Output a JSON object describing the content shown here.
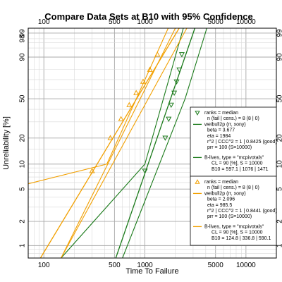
{
  "chart_data": {
    "type": "scatter",
    "title": "Compare Data Sets at B10 with 95% Confidence",
    "xlabel": "Time To Failure",
    "ylabel": "Unreliability [%]",
    "x_scale": "log",
    "y_scale": "weibull",
    "xlim": [
      70,
      20000
    ],
    "ylim_percent": [
      0.7,
      99.5
    ],
    "grid": true,
    "x_ticks_top": [
      "100",
      "500",
      "1000",
      "5000",
      "10000"
    ],
    "x_ticks_bottom": [
      "100",
      "500",
      "1000",
      "5000",
      "10000"
    ],
    "y_ticks": [
      "1",
      "2",
      "5",
      "10",
      "20",
      "50",
      "90",
      "99"
    ],
    "y_ticks_right": [
      "1",
      "2",
      "5",
      "10",
      "20",
      "50",
      "90",
      "99"
    ],
    "y_ticks_left_extra": [
      "98"
    ],
    "series": [
      {
        "color": "#1a7a1a",
        "marker": "triangle-down",
        "fit": {
          "beta": 3.677,
          "eta": 1984
        },
        "points_x": [
          1000,
          1590,
          1720,
          1820,
          1950,
          2060,
          2190,
          2320
        ],
        "points_unrel": [
          8.3,
          20.1,
          32.1,
          44.0,
          56.0,
          67.9,
          79.9,
          91.7
        ],
        "bounds": [
          {
            "p1": [
              148,
              0.7
            ],
            "p2": [
              1000,
              10
            ]
          },
          {
            "p1": [
              1000,
              10
            ],
            "p2": [
              2400,
              99.5
            ]
          },
          {
            "p1": [
              600,
              0.7
            ],
            "p2": [
              2500,
              50
            ]
          },
          {
            "p1": [
              2500,
              50
            ],
            "p2": [
              4100,
              99.5
            ]
          }
        ],
        "legend": [
          "ranks = median",
          "n (fail | cens.) = 8 (8 | 0)",
          "weibull2p (rr, xony)",
          "beta = 3.677",
          "eta = 1984",
          "r^2 | CCC^2 = 1 | 0.8425 (good)",
          "prr = 100 (S=10000)",
          "B-lives, type = \"mcpivotals\"",
          "CL = 90 [%], S = 10000",
          "B10 = 597.1 | 1076 | 1471"
        ]
      },
      {
        "color": "#f2a000",
        "marker": "triangle-up",
        "fit": {
          "beta": 2.096,
          "eta": 985.5
        },
        "points_x": [
          300,
          455,
          580,
          700,
          820,
          960,
          1120,
          1330
        ],
        "points_unrel": [
          8.3,
          20.1,
          32.1,
          44.0,
          56.0,
          67.9,
          79.9,
          91.7
        ],
        "bounds": [
          {
            "p1": [
              70,
              5.8
            ],
            "p2": [
              420,
              10
            ]
          },
          {
            "p1": [
              420,
              10
            ],
            "p2": [
              1700,
              99.5
            ]
          },
          {
            "p1": [
              148,
              0.7
            ],
            "p2": [
              2000,
              99.5
            ]
          },
          {
            "p1": [
              148,
              0.7
            ],
            "p2": [
              2600,
              99.5
            ]
          }
        ],
        "legend": [
          "ranks = median",
          "n (fail | cens.) = 8 (8 | 0)",
          "weibull2p (rr, xony)",
          "beta = 2.096",
          "eta = 985.5",
          "r^2 | CCC^2 = 1 | 0.8441 (good)",
          "prr = 100 (S=10000)",
          "B-lives, type = \"mcpivotals\"",
          "CL = 90 [%], S = 10000",
          "B10 = 124.8 | 336.8 | 590.1"
        ]
      }
    ]
  }
}
